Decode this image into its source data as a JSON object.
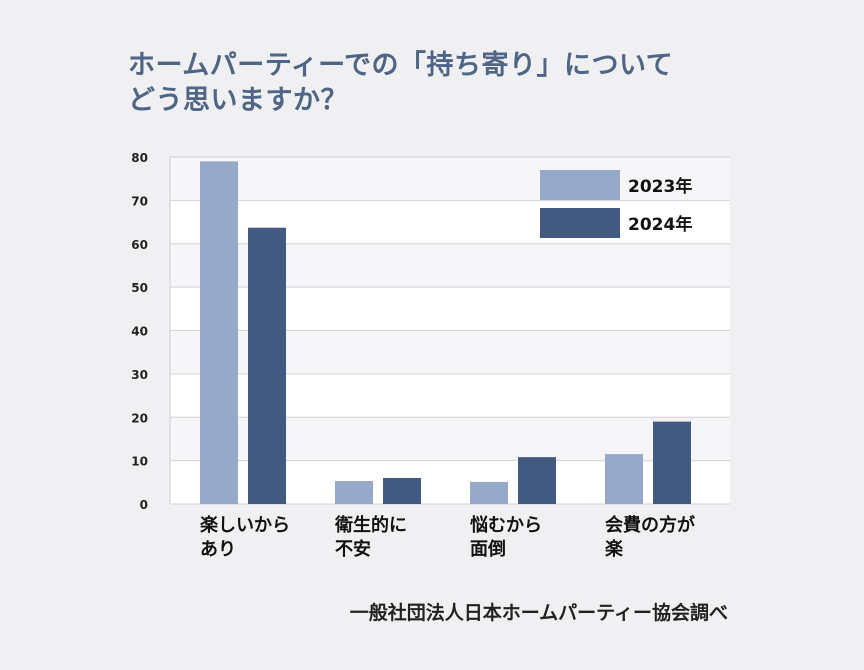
{
  "title_lines": [
    "ホームパーティーでの「持ち寄り」について",
    "どう思いますか？"
  ],
  "source": "一般社団法人日本ホームパーティー協会調べ",
  "colors": {
    "series_2023": "#97a9c8",
    "series_2024": "#425a80",
    "title": "#4f6585"
  },
  "chart_data": {
    "type": "bar",
    "title": "ホームパーティーでの「持ち寄り」についてどう思いますか？",
    "xlabel": "",
    "ylabel": "",
    "ylim": [
      0,
      80
    ],
    "yticks": [
      0,
      10,
      20,
      30,
      40,
      50,
      60,
      70,
      80
    ],
    "grid": true,
    "legend": "top-right",
    "categories": [
      [
        "楽しいから",
        "あり"
      ],
      [
        "衛生的に",
        "不安"
      ],
      [
        "悩むから",
        "面倒"
      ],
      [
        "会費の方が",
        "楽"
      ]
    ],
    "series": [
      {
        "name": "2023年",
        "values": [
          79,
          5.3,
          5.1,
          11.5
        ]
      },
      {
        "name": "2024年",
        "values": [
          63.7,
          6,
          10.8,
          19
        ]
      }
    ]
  }
}
